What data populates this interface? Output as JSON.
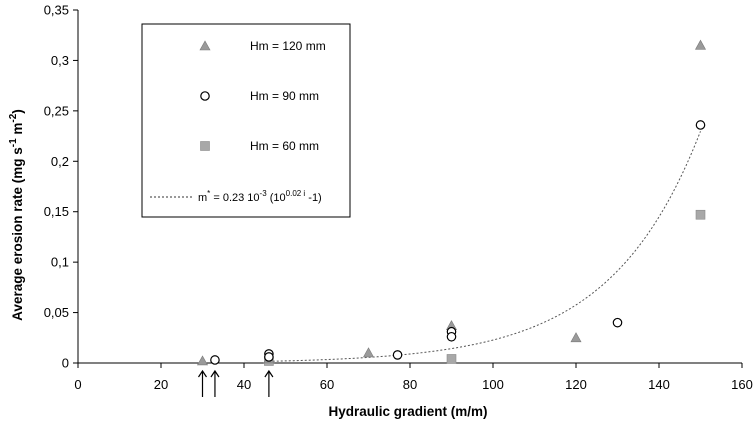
{
  "chart_data": {
    "type": "scatter",
    "xlabel": "Hydraulic gradient (m/m)",
    "ylabel": {
      "base": "Average erosion rate (mg s",
      "exp1": "-1",
      "mid": " m",
      "exp2": "-2",
      "end": ")"
    },
    "xlim": [
      0,
      160
    ],
    "ylim": [
      0,
      0.35
    ],
    "x_ticks": [
      0,
      20,
      40,
      60,
      80,
      100,
      120,
      140,
      160
    ],
    "x_tick_labels": [
      "0",
      "20",
      "40",
      "60",
      "80",
      "100",
      "120",
      "140",
      "160"
    ],
    "y_ticks": [
      0,
      0.05,
      0.1,
      0.15,
      0.2,
      0.25,
      0.3,
      0.35
    ],
    "y_tick_labels": [
      "0",
      "0,05",
      "0,1",
      "0,15",
      "0,2",
      "0,25",
      "0,3",
      "0,35"
    ],
    "grid": false,
    "legend_position": "top-left",
    "series": [
      {
        "name": "Hm = 120 mm",
        "marker": "triangle",
        "color": "#9a9a9a",
        "points": [
          [
            30,
            0.002
          ],
          [
            46,
            0.004
          ],
          [
            70,
            0.01
          ],
          [
            90,
            0.037
          ],
          [
            120,
            0.025
          ],
          [
            150,
            0.315
          ]
        ]
      },
      {
        "name": "Hm = 90 mm",
        "marker": "circle-open",
        "color": "#000000",
        "points": [
          [
            33,
            0.003
          ],
          [
            46,
            0.009
          ],
          [
            46,
            0.006
          ],
          [
            77,
            0.008
          ],
          [
            90,
            0.031
          ],
          [
            90,
            0.026
          ],
          [
            130,
            0.04
          ],
          [
            150,
            0.236
          ]
        ]
      },
      {
        "name": "Hm = 60 mm",
        "marker": "square",
        "color": "#a8a8a8",
        "points": [
          [
            46,
            0.002
          ],
          [
            90,
            0.004
          ],
          [
            150,
            0.147
          ]
        ]
      }
    ],
    "fit": {
      "label_prefix": "m",
      "label_star": "*",
      "label_mid": " = 0.23 10",
      "label_exp": "-3",
      "label_paren": " (10",
      "label_exp2": "0.02 i",
      "label_end": " -1)",
      "coefficient": 0.00023,
      "exponent_factor": 0.02,
      "x_range": [
        45,
        150
      ],
      "style": "dotted"
    },
    "annotations": {
      "arrows_at_x": [
        30,
        33,
        46
      ]
    }
  }
}
